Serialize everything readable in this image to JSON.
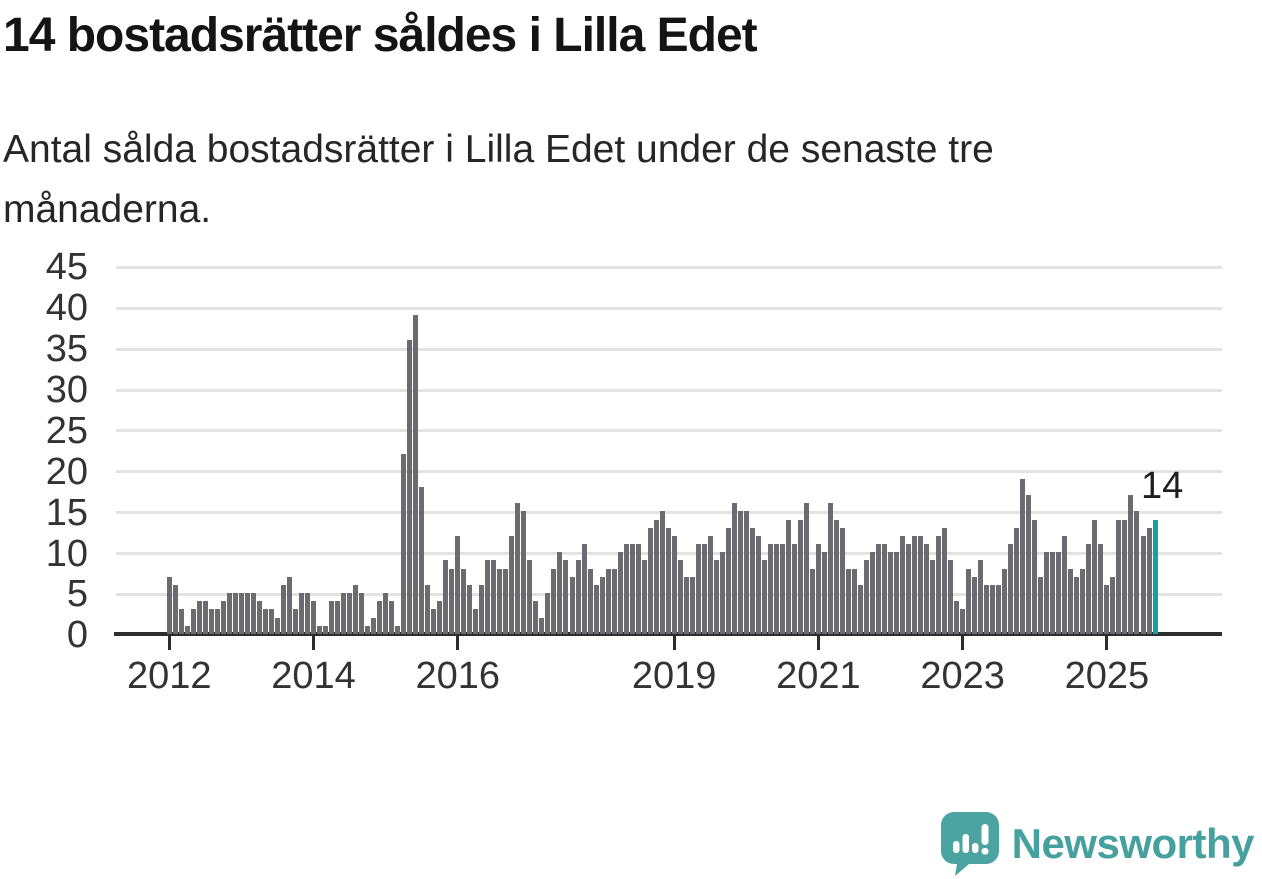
{
  "header": {
    "title": "14 bostadsrätter såldes i Lilla Edet",
    "subtitle_lines": [
      "Antal sålda bostadsrätter i Lilla Edet under de senaste tre",
      "månaderna."
    ]
  },
  "annotation": {
    "value_label": "14"
  },
  "footer": {
    "brand": "Newsworthy"
  },
  "colors": {
    "bar": "#6c6b70",
    "highlight": "#12a2a3",
    "grid": "#e3e3e3",
    "axis": "#2d2d2d",
    "brand_teal": "#46a19e",
    "background": "#ffffff"
  },
  "chart_data": {
    "type": "bar",
    "title": "14 bostadsrätter såldes i Lilla Edet",
    "xlabel": "",
    "ylabel": "",
    "x_start": "2012-01",
    "x_end": "2025-09",
    "x_tick_labels": [
      "2012",
      "2014",
      "2016",
      "2019",
      "2021",
      "2023",
      "2025"
    ],
    "x_tick_month_offsets": [
      0,
      24,
      48,
      84,
      108,
      132,
      156
    ],
    "y_ticks": [
      0,
      5,
      10,
      15,
      20,
      25,
      30,
      35,
      40,
      45
    ],
    "ylim": [
      0,
      45
    ],
    "grid": "horizontal",
    "legend": "none",
    "values": [
      7,
      6,
      3,
      1,
      3,
      4,
      4,
      3,
      3,
      4,
      5,
      5,
      5,
      5,
      5,
      4,
      3,
      3,
      2,
      6,
      7,
      3,
      5,
      5,
      4,
      1,
      1,
      4,
      4,
      5,
      5,
      6,
      5,
      1,
      2,
      4,
      5,
      4,
      1,
      22,
      36,
      39,
      18,
      6,
      3,
      4,
      9,
      8,
      12,
      8,
      6,
      3,
      6,
      9,
      9,
      8,
      8,
      12,
      16,
      15,
      9,
      4,
      2,
      5,
      8,
      10,
      9,
      7,
      9,
      11,
      8,
      6,
      7,
      8,
      8,
      10,
      11,
      11,
      11,
      9,
      13,
      14,
      15,
      13,
      12,
      9,
      7,
      7,
      11,
      11,
      12,
      9,
      10,
      13,
      16,
      15,
      15,
      13,
      12,
      9,
      11,
      11,
      11,
      14,
      11,
      14,
      16,
      8,
      11,
      10,
      16,
      14,
      13,
      8,
      8,
      6,
      9,
      10,
      11,
      11,
      10,
      10,
      12,
      11,
      12,
      12,
      11,
      9,
      12,
      13,
      9,
      4,
      3,
      8,
      7,
      9,
      6,
      6,
      6,
      8,
      11,
      13,
      19,
      17,
      14,
      7,
      10,
      10,
      10,
      12,
      8,
      7,
      8,
      11,
      14,
      11,
      6,
      7,
      14,
      14,
      17,
      15,
      12,
      13,
      14
    ],
    "highlight_index": 164,
    "highlight_value": 14
  }
}
